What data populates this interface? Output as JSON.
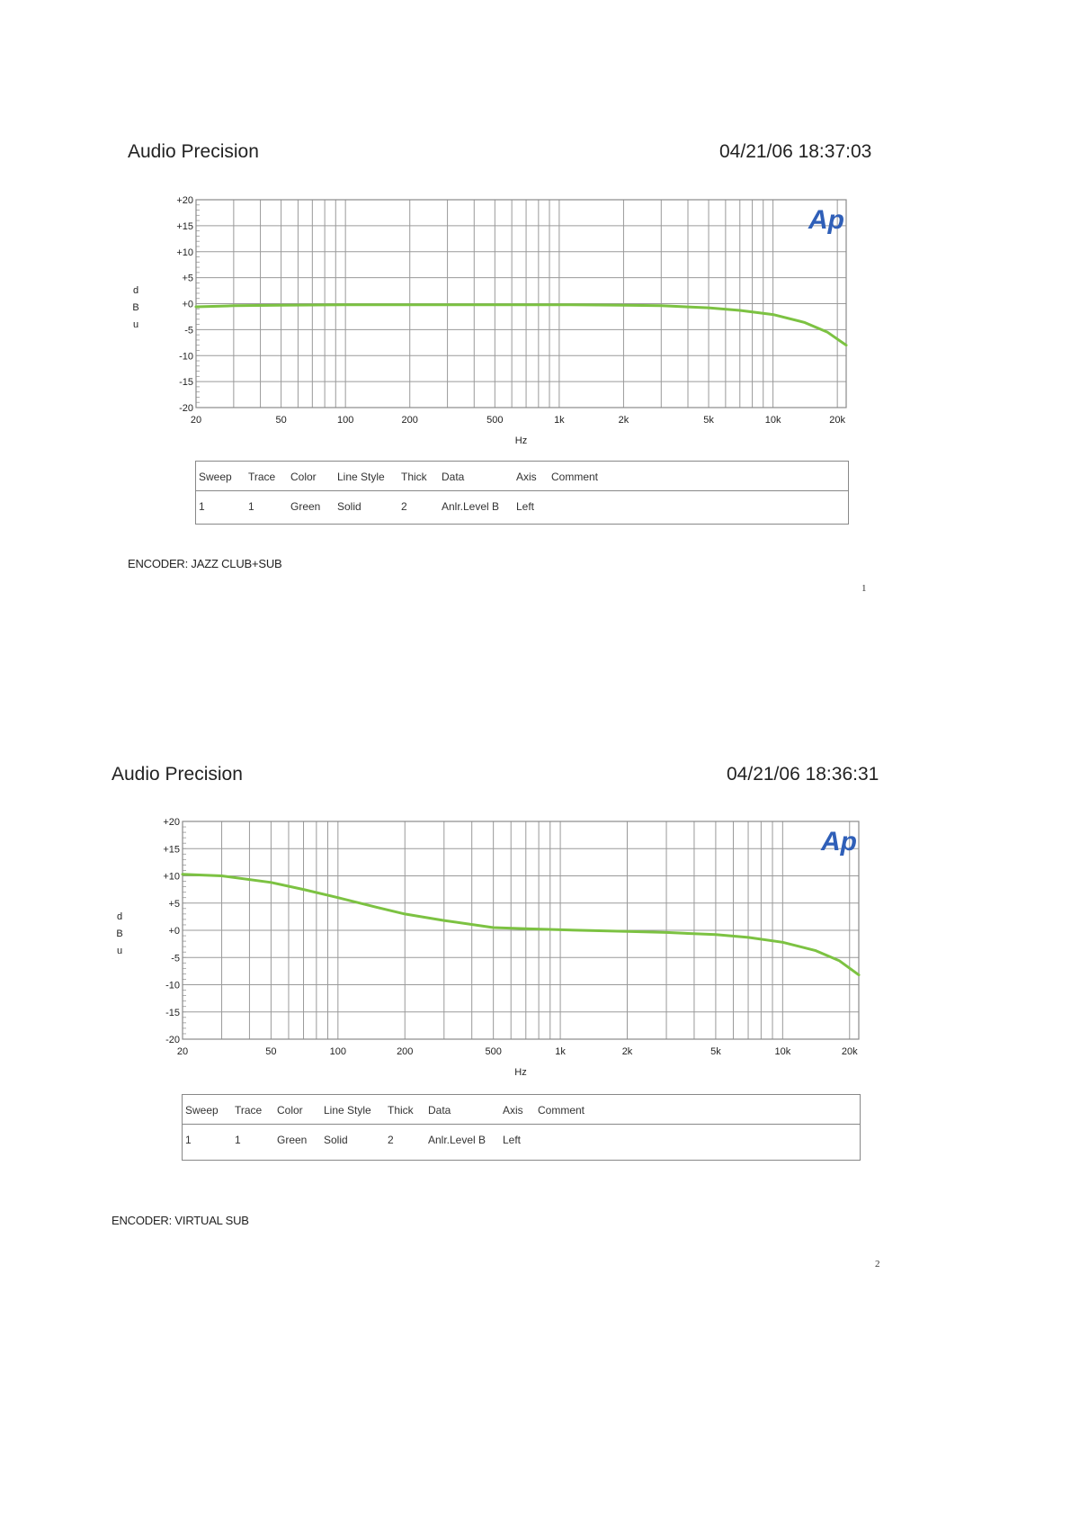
{
  "reports": [
    {
      "header_left": "Audio Precision",
      "header_right": "04/21/06 18:37:03",
      "footer": "ENCODER: JAZZ CLUB+SUB",
      "page_number": "1",
      "logo_text": "Ap",
      "legend": {
        "headers": [
          "Sweep",
          "Trace",
          "Color",
          "Line Style",
          "Thick",
          "Data",
          "Axis",
          "Comment"
        ],
        "rows": [
          [
            "1",
            "1",
            "Green",
            "Solid",
            "2",
            "Anlr.Level B",
            "Left",
            ""
          ]
        ]
      },
      "chart_data": {
        "type": "line",
        "xlabel": "Hz",
        "ylabel": "d\nB\nu",
        "xscale": "log",
        "xlim": [
          20,
          22000
        ],
        "ylim": [
          -20,
          20
        ],
        "xticks": [
          20,
          50,
          100,
          200,
          500,
          1000,
          2000,
          5000,
          10000,
          20000
        ],
        "xtick_labels": [
          "20",
          "50",
          "100",
          "200",
          "500",
          "1k",
          "2k",
          "5k",
          "10k",
          "20k"
        ],
        "yticks": [
          20,
          15,
          10,
          5,
          0,
          -5,
          -10,
          -15,
          -20
        ],
        "ytick_labels": [
          "+20",
          "+15",
          "+10",
          "+5",
          "+0",
          "-5",
          "-10",
          "-15",
          "-20"
        ],
        "grid": true,
        "line_color": "#7cc242",
        "series": [
          {
            "x": [
              20,
              30,
              50,
              100,
              200,
              500,
              1000,
              2000,
              3000,
              5000,
              7000,
              10000,
              14000,
              18000,
              22000
            ],
            "y": [
              -0.6,
              -0.4,
              -0.3,
              -0.2,
              -0.2,
              -0.2,
              -0.2,
              -0.3,
              -0.4,
              -0.8,
              -1.3,
              -2.1,
              -3.6,
              -5.5,
              -8.0
            ]
          }
        ]
      }
    },
    {
      "header_left": "Audio Precision",
      "header_right": "04/21/06 18:36:31",
      "footer": "ENCODER: VIRTUAL SUB",
      "page_number": "2",
      "logo_text": "Ap",
      "legend": {
        "headers": [
          "Sweep",
          "Trace",
          "Color",
          "Line Style",
          "Thick",
          "Data",
          "Axis",
          "Comment"
        ],
        "rows": [
          [
            "1",
            "1",
            "Green",
            "Solid",
            "2",
            "Anlr.Level B",
            "Left",
            ""
          ]
        ]
      },
      "chart_data": {
        "type": "line",
        "xlabel": "Hz",
        "ylabel": "d\nB\nu",
        "xscale": "log",
        "xlim": [
          20,
          22000
        ],
        "ylim": [
          -20,
          20
        ],
        "xticks": [
          20,
          50,
          100,
          200,
          500,
          1000,
          2000,
          5000,
          10000,
          20000
        ],
        "xtick_labels": [
          "20",
          "50",
          "100",
          "200",
          "500",
          "1k",
          "2k",
          "5k",
          "10k",
          "20k"
        ],
        "yticks": [
          20,
          15,
          10,
          5,
          0,
          -5,
          -10,
          -15,
          -20
        ],
        "ytick_labels": [
          "+20",
          "+15",
          "+10",
          "+5",
          "+0",
          "-5",
          "-10",
          "-15",
          "-20"
        ],
        "grid": true,
        "line_color": "#7cc242",
        "series": [
          {
            "x": [
              20,
              30,
              50,
              70,
              100,
              150,
              200,
              300,
              500,
              700,
              1000,
              2000,
              3000,
              5000,
              7000,
              10000,
              14000,
              18000,
              22000
            ],
            "y": [
              10.3,
              10.0,
              8.8,
              7.5,
              6.0,
              4.2,
              3.0,
              1.8,
              0.5,
              0.3,
              0.1,
              -0.2,
              -0.4,
              -0.8,
              -1.3,
              -2.2,
              -3.7,
              -5.6,
              -8.2
            ]
          }
        ]
      }
    }
  ]
}
